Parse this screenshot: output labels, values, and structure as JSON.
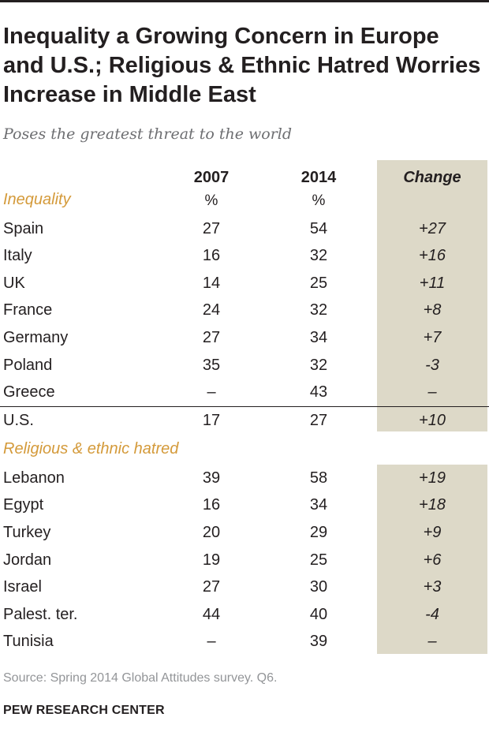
{
  "title": "Inequality a Growing Concern in Europe and U.S.; Religious & Ethnic Hatred Worries Increase in Middle East",
  "subtitle": "Poses the greatest threat to the world",
  "source": "Source: Spring 2014 Global Attitudes survey. Q6.",
  "credit": "PEW RESEARCH CENTER",
  "colors": {
    "band": "#ddd9c8",
    "section_label": "#d49a3a",
    "text": "#231f20"
  },
  "chart_data": {
    "type": "table",
    "columns": [
      "2007",
      "2014",
      "Change"
    ],
    "units": [
      "%",
      "%"
    ],
    "sections": [
      {
        "label": "Inequality",
        "rows": [
          {
            "country": "Spain",
            "v2007": "27",
            "v2014": "54",
            "change": "+27"
          },
          {
            "country": "Italy",
            "v2007": "16",
            "v2014": "32",
            "change": "+16"
          },
          {
            "country": "UK",
            "v2007": "14",
            "v2014": "25",
            "change": "+11"
          },
          {
            "country": "France",
            "v2007": "24",
            "v2014": "32",
            "change": "+8"
          },
          {
            "country": "Germany",
            "v2007": "27",
            "v2014": "34",
            "change": "+7"
          },
          {
            "country": "Poland",
            "v2007": "35",
            "v2014": "32",
            "change": "-3"
          },
          {
            "country": "Greece",
            "v2007": "–",
            "v2014": "43",
            "change": "–"
          },
          {
            "country": "U.S.",
            "v2007": "17",
            "v2014": "27",
            "change": "+10"
          }
        ]
      },
      {
        "label": "Religious & ethnic hatred",
        "rows": [
          {
            "country": "Lebanon",
            "v2007": "39",
            "v2014": "58",
            "change": "+19"
          },
          {
            "country": "Egypt",
            "v2007": "16",
            "v2014": "34",
            "change": "+18"
          },
          {
            "country": "Turkey",
            "v2007": "20",
            "v2014": "29",
            "change": "+9"
          },
          {
            "country": "Jordan",
            "v2007": "19",
            "v2014": "25",
            "change": "+6"
          },
          {
            "country": "Israel",
            "v2007": "27",
            "v2014": "30",
            "change": "+3"
          },
          {
            "country": "Palest. ter.",
            "v2007": "44",
            "v2014": "40",
            "change": "-4"
          },
          {
            "country": "Tunisia",
            "v2007": "–",
            "v2014": "39",
            "change": "–"
          }
        ]
      }
    ]
  }
}
